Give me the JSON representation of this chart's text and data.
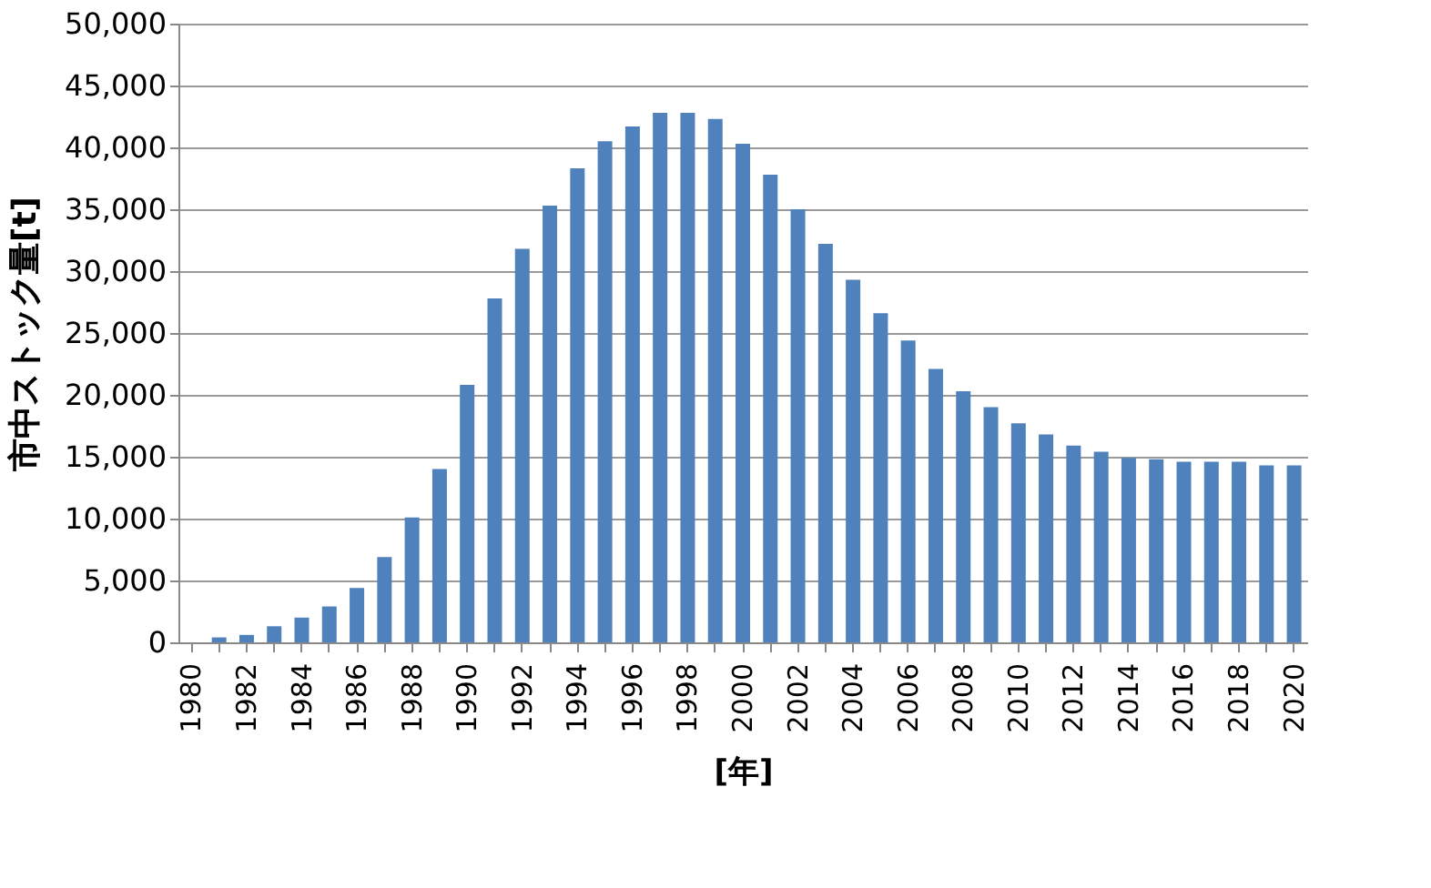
{
  "chart_data": {
    "type": "bar",
    "xlabel": "[年]",
    "ylabel": "市中ストック量[t]",
    "categories": [
      "1980",
      null,
      "1982",
      null,
      "1984",
      null,
      "1986",
      null,
      "1988",
      null,
      "1990",
      null,
      "1992",
      null,
      "1994",
      null,
      "1996",
      null,
      "1998",
      null,
      "2000",
      null,
      "2002",
      null,
      "2004",
      null,
      "2006",
      null,
      "2008",
      null,
      "2010",
      null,
      "2012",
      null,
      "2014",
      null,
      "2016",
      null,
      "2018",
      null,
      "2020"
    ],
    "values": [
      0,
      400,
      600,
      1300,
      2000,
      2900,
      4400,
      6900,
      10100,
      14000,
      20800,
      27800,
      31800,
      35300,
      38300,
      40500,
      41700,
      42800,
      42800,
      42300,
      40300,
      37800,
      35000,
      32200,
      29300,
      26600,
      24400,
      22100,
      20300,
      19000,
      17700,
      16800,
      15900,
      15400,
      14900,
      14800,
      14600,
      14600,
      14600,
      14300,
      14300
    ],
    "color": "#4f81bd",
    "ylim": [
      0,
      50000
    ],
    "yticks": [
      {
        "value": 0,
        "label": "0"
      },
      {
        "value": 5000,
        "label": "5,000"
      },
      {
        "value": 10000,
        "label": "10,000"
      },
      {
        "value": 15000,
        "label": "15,000"
      },
      {
        "value": 20000,
        "label": "20,000"
      },
      {
        "value": 25000,
        "label": "25,000"
      },
      {
        "value": 30000,
        "label": "30,000"
      },
      {
        "value": 35000,
        "label": "35,000"
      },
      {
        "value": 40000,
        "label": "40,000"
      },
      {
        "value": 45000,
        "label": "45,000"
      },
      {
        "value": 50000,
        "label": "50,000"
      }
    ],
    "grid": "y"
  }
}
